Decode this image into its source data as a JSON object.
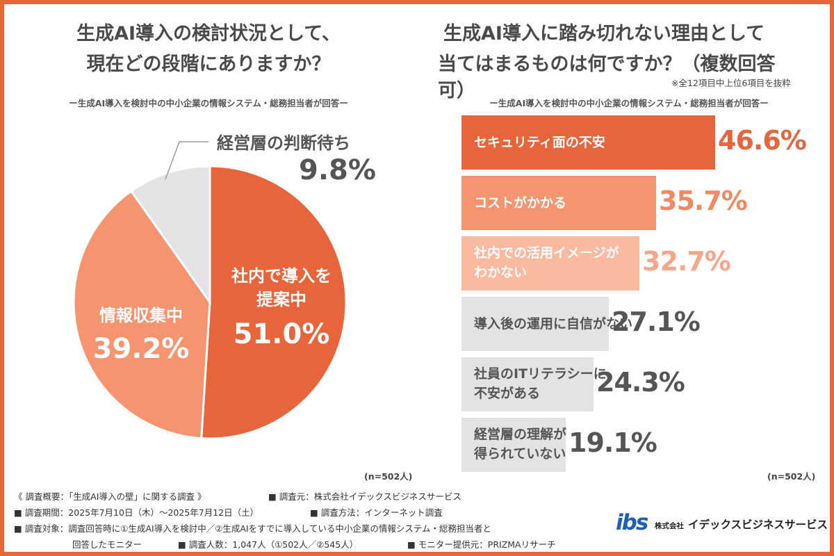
{
  "left": {
    "title_line1": "生成AI導入の検討状況として、",
    "title_line2": "現在どの段階にありますか？",
    "subtitle": "ー生成AI導入を検討中の中小企業の情報システム・総務担当者が回答ー",
    "n_label": "(n=502人)"
  },
  "right": {
    "title_line1": "生成AI導入に踏み切れない理由として",
    "title_line2": "当てはまるものは何ですか？（複数回答可）",
    "footnote": "※全12項目中上位6項目を抜粋",
    "subtitle": "ー生成AI導入を検討中の中小企業の情報システム・総務担当者が回答ー",
    "n_label": "(n=502人)"
  },
  "chart_data": [
    {
      "type": "pie",
      "title": "生成AI導入の検討状況として、現在どの段階にありますか？",
      "slices": [
        {
          "label_line1": "社内で導入を",
          "label_line2": "提案中",
          "value": 51.0,
          "value_text": "51.0%",
          "color": "#e8643a"
        },
        {
          "label_line1": "情報収集中",
          "label_line2": "",
          "value": 39.2,
          "value_text": "39.2%",
          "color": "#f79470"
        },
        {
          "label_line1": "経営層の判断待ち",
          "label_line2": "",
          "value": 9.8,
          "value_text": "9.8%",
          "color": "#e3e3e6"
        }
      ]
    },
    {
      "type": "bar",
      "title": "生成AI導入に踏み切れない理由として当てはまるものは何ですか？（複数回答可）",
      "xlim": [
        0,
        100
      ],
      "bars": [
        {
          "label_line1": "セキュリティ面の不安",
          "label_line2": "",
          "value": 46.6,
          "value_text": "46.6%",
          "color": "#e8643a",
          "text_color": "#ffffff",
          "value_color": "#e8643a"
        },
        {
          "label_line1": "コストがかかる",
          "label_line2": "",
          "value": 35.7,
          "value_text": "35.7%",
          "color": "#f79470",
          "text_color": "#ffffff",
          "value_color": "#f08a62"
        },
        {
          "label_line1": "社内での活用イメージが",
          "label_line2": "わかない",
          "value": 32.7,
          "value_text": "32.7%",
          "color": "#fbbaa0",
          "text_color": "#ffffff",
          "value_color": "#f6a788"
        },
        {
          "label_line1": "導入後の運用に自信がない",
          "label_line2": "",
          "value": 27.1,
          "value_text": "27.1%",
          "color": "#e3e3e6",
          "text_color": "#555555",
          "value_color": "#555555"
        },
        {
          "label_line1": "社員のITリテラシーに",
          "label_line2": "不安がある",
          "value": 24.3,
          "value_text": "24.3%",
          "color": "#e3e3e6",
          "text_color": "#555555",
          "value_color": "#555555"
        },
        {
          "label_line1": "経営層の理解が",
          "label_line2": "得られていない",
          "value": 19.1,
          "value_text": "19.1%",
          "color": "#e3e3e6",
          "text_color": "#555555",
          "value_color": "#555555"
        }
      ]
    }
  ],
  "footer": {
    "line1a": "《 調査概要：「生成AI導入の壁」に関する調査 》",
    "line1b": "■ 調査元：株式会社イデックスビジネスサービス",
    "line2a": "■ 調査期間：2025年7月10日（木）～2025年7月12日（土）",
    "line2b": "■ 調査方法：インターネット調査",
    "line3": "■ 調査対象：調査回答時に①生成AI導入を検討中／②生成AIをすでに導入している中小企業の情報システム・総務担当者と",
    "line4a": "回答したモニター",
    "line4b": "■ 調査人数：1,047人（①502人／②545人）",
    "line4c": "■ モニター提供元：PRIZMAリサーチ"
  },
  "logo": {
    "mark": "ibs",
    "prefix": "株式会社",
    "company": "イデックスビジネスサービス",
    "color": "#1d5fb8"
  }
}
